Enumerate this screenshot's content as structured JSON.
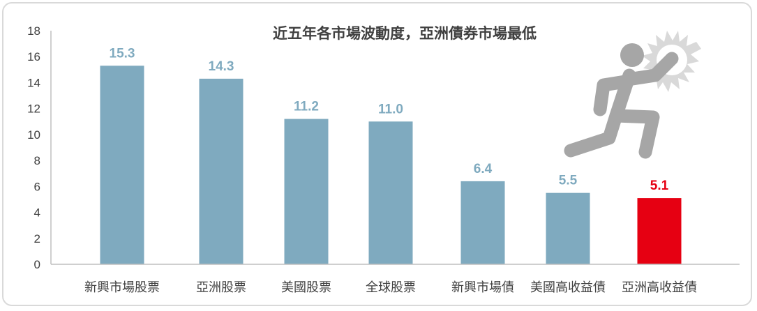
{
  "chart_data": {
    "type": "bar",
    "title": "近五年各市場波動度，亞洲債券市場最低",
    "categories": [
      "新興市場股票",
      "亞洲股票",
      "美國股票",
      "全球股票",
      "新興市場債",
      "美國高收益債",
      "亞洲高收益債"
    ],
    "values": [
      15.3,
      14.3,
      11.2,
      11.0,
      6.4,
      5.5,
      5.1
    ],
    "value_labels": [
      "15.3",
      "14.3",
      "11.2",
      "11.0",
      "6.4",
      "5.5",
      "5.1"
    ],
    "highlight_index": 6,
    "ylim": [
      0,
      18
    ],
    "yticks": [
      "0",
      "2",
      "4",
      "6",
      "8",
      "10",
      "12",
      "14",
      "16",
      "18"
    ],
    "grid": false,
    "legend": "none",
    "xlabel": "",
    "ylabel": ""
  },
  "icon": "running-figure-icon",
  "colors": {
    "bar": "#7faabf",
    "bar_label": "#7faabf",
    "highlight": "#e60012",
    "axis": "#bfbfbf",
    "text": "#404040",
    "figure": "#a6a6a6",
    "burst": "#d9d9d9"
  }
}
